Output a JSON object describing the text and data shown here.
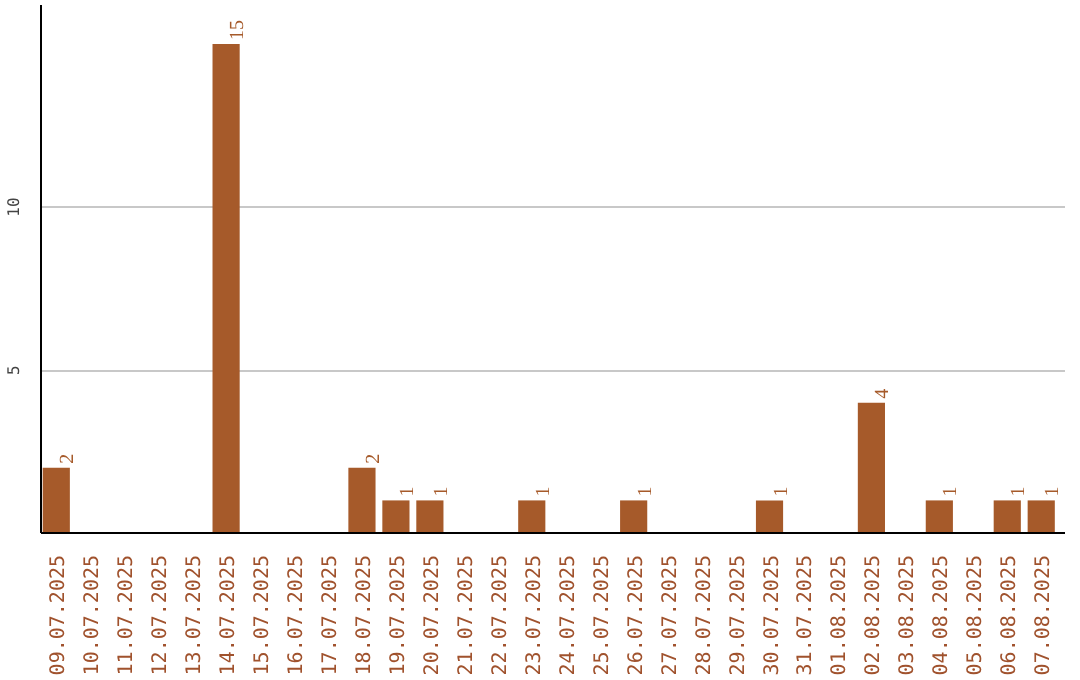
{
  "chart_data": {
    "type": "bar",
    "categories": [
      "09.07.2025",
      "10.07.2025",
      "11.07.2025",
      "12.07.2025",
      "13.07.2025",
      "14.07.2025",
      "15.07.2025",
      "16.07.2025",
      "17.07.2025",
      "18.07.2025",
      "19.07.2025",
      "20.07.2025",
      "21.07.2025",
      "22.07.2025",
      "23.07.2025",
      "24.07.2025",
      "25.07.2025",
      "26.07.2025",
      "27.07.2025",
      "28.07.2025",
      "29.07.2025",
      "30.07.2025",
      "31.07.2025",
      "01.08.2025",
      "02.08.2025",
      "03.08.2025",
      "04.08.2025",
      "05.08.2025",
      "06.08.2025",
      "07.08.2025"
    ],
    "values": [
      2,
      null,
      null,
      null,
      null,
      15,
      null,
      null,
      null,
      2,
      1,
      1,
      null,
      null,
      1,
      null,
      null,
      1,
      null,
      null,
      null,
      1,
      null,
      null,
      4,
      null,
      1,
      null,
      1,
      1
    ],
    "color": "#a65a2a",
    "ylim": [
      0,
      16.2
    ],
    "yticks": [
      5,
      10
    ],
    "grid": "y",
    "data_labels": true
  }
}
